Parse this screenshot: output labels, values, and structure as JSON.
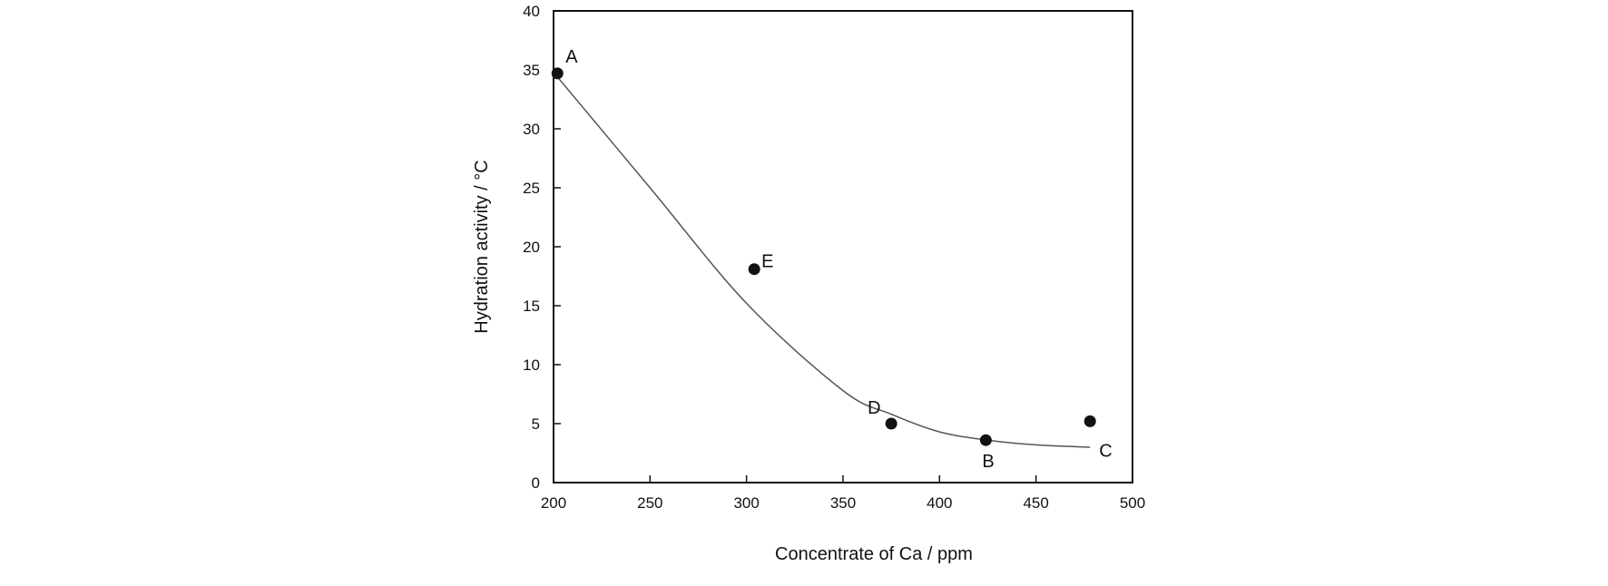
{
  "chart_data": {
    "type": "scatter",
    "title": "",
    "xlabel": "Concentrate of Ca / ppm",
    "ylabel": "Hydration activity / °C",
    "xlim": [
      200,
      500
    ],
    "ylim": [
      0,
      40
    ],
    "xticks": [
      200,
      250,
      300,
      350,
      400,
      450,
      500
    ],
    "yticks": [
      0,
      5,
      10,
      15,
      20,
      25,
      30,
      35,
      40
    ],
    "xtick_labels": [
      "200",
      "250",
      "300",
      "350",
      "400",
      "450",
      "500"
    ],
    "ytick_labels": [
      "0",
      "5",
      "10",
      "15",
      "20",
      "25",
      "30",
      "35",
      "40"
    ],
    "grid": false,
    "legend": "none",
    "points": [
      {
        "label": "A",
        "x": 202,
        "y": 34.7
      },
      {
        "label": "E",
        "x": 304,
        "y": 18.1
      },
      {
        "label": "D",
        "x": 375,
        "y": 5.0
      },
      {
        "label": "B",
        "x": 424,
        "y": 3.6
      },
      {
        "label": "C",
        "x": 478,
        "y": 5.2
      }
    ],
    "trendline": {
      "x": [
        202,
        250,
        300,
        350,
        375,
        400,
        425,
        450,
        478
      ],
      "y": [
        34.4,
        25.0,
        15.2,
        7.8,
        5.8,
        4.3,
        3.6,
        3.2,
        3.0
      ]
    }
  }
}
